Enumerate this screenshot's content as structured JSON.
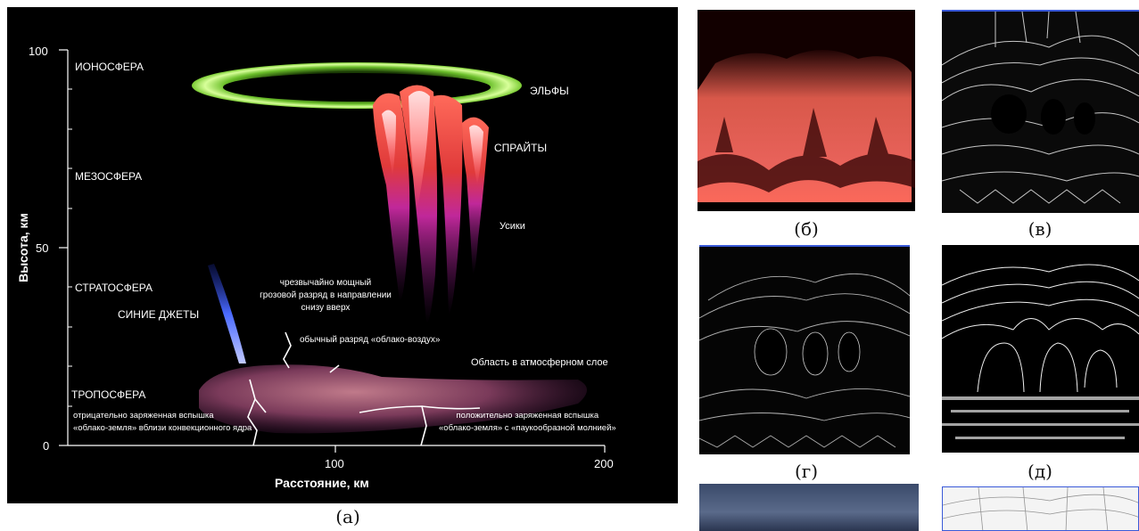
{
  "figure_a": {
    "caption": "(a)",
    "y_axis_label": "Высота, км",
    "x_axis_label": "Расстояние, км",
    "y_ticks": [
      "100",
      "50",
      "0"
    ],
    "x_ticks": [
      "100",
      "200"
    ],
    "layers": {
      "ionosphere": "ИОНОСФЕРА",
      "mesosphere": "МЕЗОСФЕРА",
      "stratosphere": "СТРАТОСФЕРА",
      "troposphere": "ТРОПОСФЕРА"
    },
    "phenomena": {
      "elves": "ЭЛЬФЫ",
      "sprites": "СПРАЙТЫ",
      "tendrils": "Усики",
      "blue_jets": "СИНИЕ ДЖЕТЫ"
    },
    "notes": {
      "gigantic_jet": [
        "чрезвычайно мощный",
        "грозовой разряд в направлении",
        "снизу вверх"
      ],
      "cloud_to_air": "обычный разряд «облако-воздух»",
      "atmosphere_region": "Область в атмосферном слое",
      "negative_flash": [
        "отрицательно заряженная вспышка",
        "«облако-земля» вблизи конвекционного ядра"
      ],
      "positive_flash": [
        "положительно заряженная вспышка",
        "«облако-земля» с «паукообразной молнией»"
      ]
    }
  },
  "panels": [
    {
      "caption": "(б)"
    },
    {
      "caption": "(в)"
    },
    {
      "caption": "(г)"
    },
    {
      "caption": "(д)"
    }
  ],
  "colors": {
    "background": "#000000",
    "elves": "#8ed63a",
    "sprites": "#e8484a",
    "tendrils": "#b0309a",
    "blue_jet": "#3a5cff",
    "cloud": "#8a4a5a"
  }
}
